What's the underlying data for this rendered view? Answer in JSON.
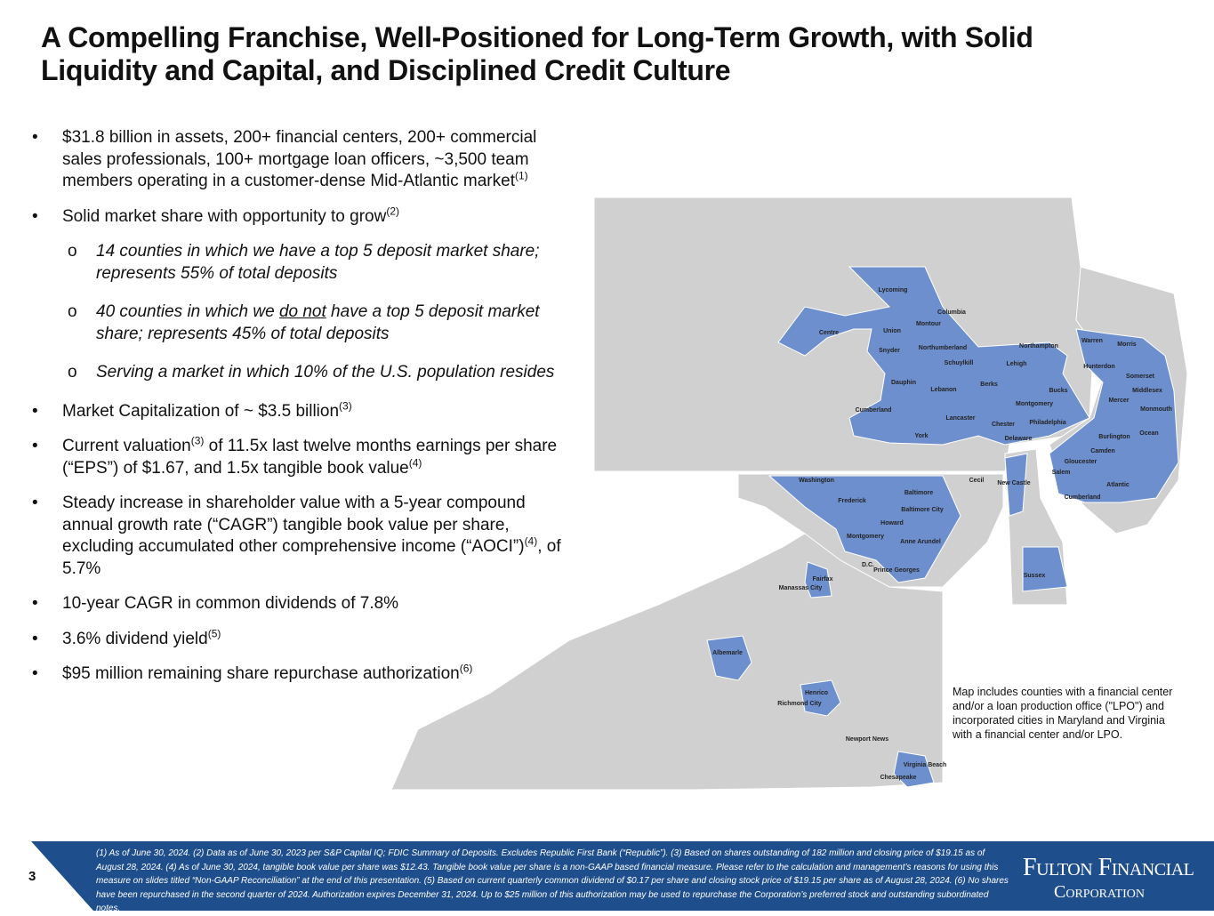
{
  "title": "A Compelling Franchise, Well-Positioned for Long-Term Growth, with Solid Liquidity and Capital, and Disciplined Credit Culture",
  "bullets": [
    {
      "level": 1,
      "runs": [
        {
          "t": "$31.8 billion in assets, 200+ financial centers, 200+ commercial sales professionals, 100+ mortgage loan officers, ~3,500 team members operating in a customer-dense Mid-Atlantic market"
        },
        {
          "sup": "(1)"
        }
      ]
    },
    {
      "level": 1,
      "runs": [
        {
          "t": "Solid market share with opportunity to grow"
        },
        {
          "sup": "(2)"
        }
      ]
    },
    {
      "level": 2,
      "runs": [
        {
          "t": "14 counties in which we have a top 5 deposit market share; represents 55% of  total deposits"
        }
      ]
    },
    {
      "level": 2,
      "runs": [
        {
          "t": "40 counties in which we "
        },
        {
          "u": "do not"
        },
        {
          "t": " have a top 5 deposit market share; represents 45% of total deposits"
        }
      ]
    },
    {
      "level": 2,
      "runs": [
        {
          "t": "Serving a market in which 10% of the U.S. population resides"
        }
      ]
    },
    {
      "level": 1,
      "runs": [
        {
          "t": "Market Capitalization of ~ $3.5 billion"
        },
        {
          "sup": "(3)"
        }
      ]
    },
    {
      "level": 1,
      "runs": [
        {
          "t": "Current valuation"
        },
        {
          "sup": "(3)"
        },
        {
          "t": " of 11.5x last twelve months earnings per share (“EPS”) of $1.67, and 1.5x tangible book value"
        },
        {
          "sup": "(4)"
        }
      ]
    },
    {
      "level": 1,
      "runs": [
        {
          "t": "Steady increase in shareholder value with a 5-year compound annual growth rate (“CAGR”) tangible book value per share, excluding accumulated other comprehensive income (“AOCI”)"
        },
        {
          "sup": "(4)"
        },
        {
          "t": ", of 5.7%"
        }
      ]
    },
    {
      "level": 1,
      "runs": [
        {
          "t": "10-year CAGR in common dividends of 7.8%"
        }
      ]
    },
    {
      "level": 1,
      "runs": [
        {
          "t": "3.6% dividend yield"
        },
        {
          "sup": "(5)"
        }
      ]
    },
    {
      "level": 1,
      "runs": [
        {
          "t": "$95 million remaining share repurchase authorization"
        },
        {
          "sup": "(6)"
        }
      ]
    }
  ],
  "bullet_symbols": {
    "level1": "•",
    "level2": "o"
  },
  "map": {
    "note": "Map includes counties with a financial center and/or a loan production office (\"LPO\") and incorporated cities in Maryland and Virginia with a financial center and/or LPO.",
    "labels": [
      "Lycoming",
      "Centre",
      "Union",
      "Montour",
      "Columbia",
      "Snyder",
      "Northumberland",
      "Northampton",
      "Warren",
      "Morris",
      "Schuylkill",
      "Lehigh",
      "Hunterdon",
      "Somerset",
      "Dauphin",
      "Lebanon",
      "Berks",
      "Bucks",
      "Middlesex",
      "Montgomery",
      "Mercer",
      "Monmouth",
      "Cumberland",
      "Lancaster",
      "Chester",
      "Philadelphia",
      "Delaware",
      "Burlington",
      "Ocean",
      "York",
      "Camden",
      "Gloucester",
      "Salem",
      "Atlantic",
      "Cumberland",
      "Washington",
      "Frederick",
      "Baltimore",
      "Cecil",
      "New Castle",
      "Baltimore City",
      "Howard",
      "Montgomery",
      "Anne Arundel",
      "D.C.",
      "Prince Georges",
      "Fairfax",
      "Manassas City",
      "Sussex",
      "Albemarle",
      "Henrico",
      "Richmond City",
      "Newport News",
      "Virginia Beach",
      "Chesapeake"
    ]
  },
  "footer": {
    "page_number": "3",
    "notes": "(1) As of June 30, 2024. (2) Data as of June 30, 2023 per S&P Capital IQ; FDIC Summary of Deposits. Excludes Republic First Bank (“Republic”).  (3) Based on shares outstanding of 182 million and closing price of $19.15 as of August 28, 2024. (4) As of June 30, 2024, tangible book value per share was  $12.43. Tangible book value per share is a non-GAAP based financial measure. Please refer to the calculation and management’s reasons for using this measure on slides titled “Non-GAAP Reconciliation” at the end of this presentation. (5) Based on current quarterly common dividend of $0.17 per share and closing stock price of $19.15 per share  as of August 28, 2024. (6) No shares have been repurchased in the second quarter of 2024.  Authorization expires December 31, 2024. Up to $25 million of this authorization may be used to repurchase the Corporation’s preferred stock and outstanding subordinated notes.",
    "logo_line1": "Fulton Financial",
    "logo_line2": "Corporation"
  }
}
